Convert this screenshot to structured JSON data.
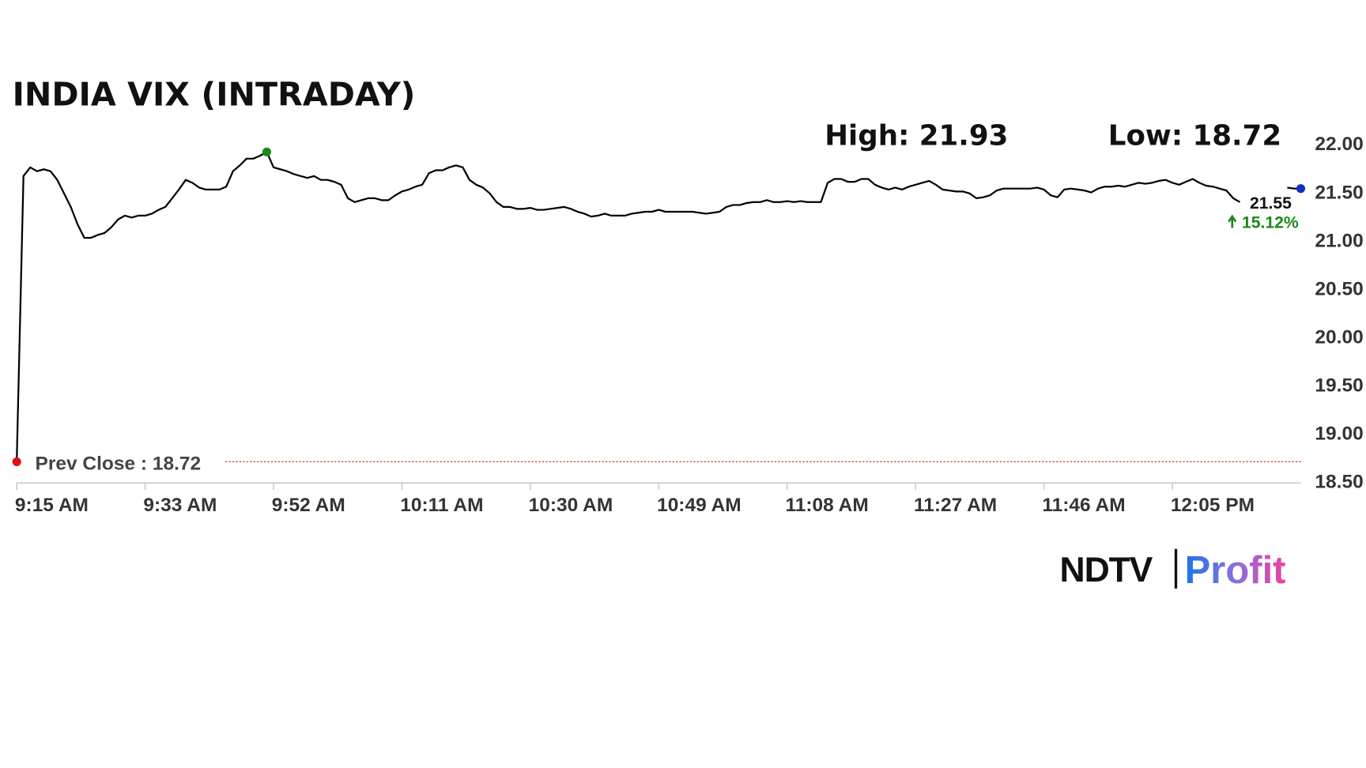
{
  "chart_data": {
    "type": "line",
    "title": "INDIA VIX (INTRADAY)",
    "high_label": "High: 21.93",
    "low_label": "Low: 18.72",
    "last_value_label": "21.55",
    "change_label": "15.12%",
    "brand": [
      "NDTV",
      "Profit"
    ],
    "color": "#000000",
    "high_color": "#1a8a1a",
    "start_color": "#e01010",
    "last_color": "#1030c0",
    "change_color": "#1a8a1a",
    "reference_line": {
      "value": 18.72,
      "label": "Prev Close : 18.72",
      "color": "#c0392b"
    },
    "ylim": [
      18.5,
      22.0
    ],
    "yticks": [
      {
        "value": 22.0,
        "label": "22.00"
      },
      {
        "value": 21.5,
        "label": "21.50"
      },
      {
        "value": 21.0,
        "label": "21.00"
      },
      {
        "value": 20.5,
        "label": "20.50"
      },
      {
        "value": 20.0,
        "label": "20.00"
      },
      {
        "value": 19.5,
        "label": "19.50"
      },
      {
        "value": 19.0,
        "label": "19.00"
      },
      {
        "value": 18.5,
        "label": "18.50"
      }
    ],
    "categories": [
      "9:15 AM",
      null,
      null,
      null,
      null,
      null,
      null,
      null,
      null,
      null,
      null,
      null,
      null,
      null,
      null,
      null,
      null,
      null,
      null,
      "9:33 AM",
      null,
      null,
      null,
      null,
      null,
      null,
      null,
      null,
      null,
      null,
      null,
      null,
      null,
      null,
      null,
      null,
      null,
      null,
      "9:52 AM",
      null,
      null,
      null,
      null,
      null,
      null,
      null,
      null,
      null,
      null,
      null,
      null,
      null,
      null,
      null,
      null,
      null,
      null,
      "10:11 AM",
      null,
      null,
      null,
      null,
      null,
      null,
      null,
      null,
      null,
      null,
      null,
      null,
      null,
      null,
      null,
      null,
      null,
      null,
      "10:30 AM",
      null,
      null,
      null,
      null,
      null,
      null,
      null,
      null,
      null,
      null,
      null,
      null,
      null,
      null,
      null,
      null,
      null,
      null,
      "10:49 AM",
      null,
      null,
      null,
      null,
      null,
      null,
      null,
      null,
      null,
      null,
      null,
      null,
      null,
      null,
      null,
      null,
      null,
      null,
      "11:08 AM",
      null,
      null,
      null,
      null,
      null,
      null,
      null,
      null,
      null,
      null,
      null,
      null,
      null,
      null,
      null,
      null,
      null,
      null,
      "11:27 AM",
      null,
      null,
      null,
      null,
      null,
      null,
      null,
      null,
      null,
      null,
      null,
      null,
      null,
      null,
      null,
      null,
      null,
      null,
      "11:46 AM",
      null,
      null,
      null,
      null,
      null,
      null,
      null,
      null,
      null,
      null,
      null,
      null,
      null,
      null,
      null,
      null,
      null,
      null,
      "12:05 PM",
      null,
      null,
      null,
      null,
      null,
      null,
      null,
      null,
      null,
      null,
      null,
      null,
      null,
      null,
      null,
      null,
      null,
      null,
      null
    ],
    "values": [
      18.72,
      21.68,
      21.77,
      21.73,
      21.75,
      21.73,
      21.64,
      21.5,
      21.36,
      21.18,
      21.04,
      21.04,
      21.07,
      21.09,
      21.15,
      21.23,
      21.27,
      21.25,
      21.27,
      21.27,
      21.29,
      21.33,
      21.36,
      21.45,
      21.54,
      21.64,
      21.61,
      21.56,
      21.54,
      21.54,
      21.54,
      21.57,
      21.73,
      21.79,
      21.86,
      21.86,
      21.89,
      21.93,
      21.77,
      21.75,
      21.73,
      21.7,
      21.68,
      21.66,
      21.68,
      21.64,
      21.64,
      21.62,
      21.59,
      21.45,
      21.41,
      21.43,
      21.45,
      21.45,
      21.43,
      21.43,
      21.48,
      21.52,
      21.54,
      21.57,
      21.59,
      21.71,
      21.74,
      21.74,
      21.77,
      21.79,
      21.77,
      21.64,
      21.59,
      21.56,
      21.5,
      21.41,
      21.36,
      21.36,
      21.34,
      21.34,
      21.35,
      21.33,
      21.33,
      21.34,
      21.35,
      21.36,
      21.34,
      21.31,
      21.29,
      21.26,
      21.27,
      21.29,
      21.27,
      21.27,
      21.27,
      21.29,
      21.3,
      21.31,
      21.31,
      21.33,
      21.31,
      21.31,
      21.31,
      21.31,
      21.31,
      21.3,
      21.29,
      21.3,
      21.31,
      21.36,
      21.38,
      21.38,
      21.4,
      21.41,
      21.41,
      21.43,
      21.41,
      21.41,
      21.42,
      21.41,
      21.42,
      21.41,
      21.41,
      21.41,
      21.61,
      21.65,
      21.65,
      21.62,
      21.62,
      21.65,
      21.65,
      21.59,
      21.56,
      21.54,
      21.56,
      21.54,
      21.57,
      21.59,
      21.61,
      21.63,
      21.59,
      21.54,
      21.53,
      21.52,
      21.52,
      21.5,
      21.45,
      21.46,
      21.48,
      21.53,
      21.55,
      21.55,
      21.55,
      21.55,
      21.55,
      21.56,
      21.54,
      21.48,
      21.46,
      21.54,
      21.55,
      21.54,
      21.53,
      21.51,
      21.55,
      21.57,
      21.57,
      21.58,
      21.57,
      21.59,
      21.61,
      21.6,
      21.61,
      21.63,
      21.64,
      21.61,
      21.59,
      21.62,
      21.65,
      21.61,
      21.58,
      21.57,
      21.55,
      21.53,
      21.45,
      21.41,
      null,
      null,
      null,
      null,
      null,
      null,
      21.56,
      21.55,
      21.55
    ]
  }
}
